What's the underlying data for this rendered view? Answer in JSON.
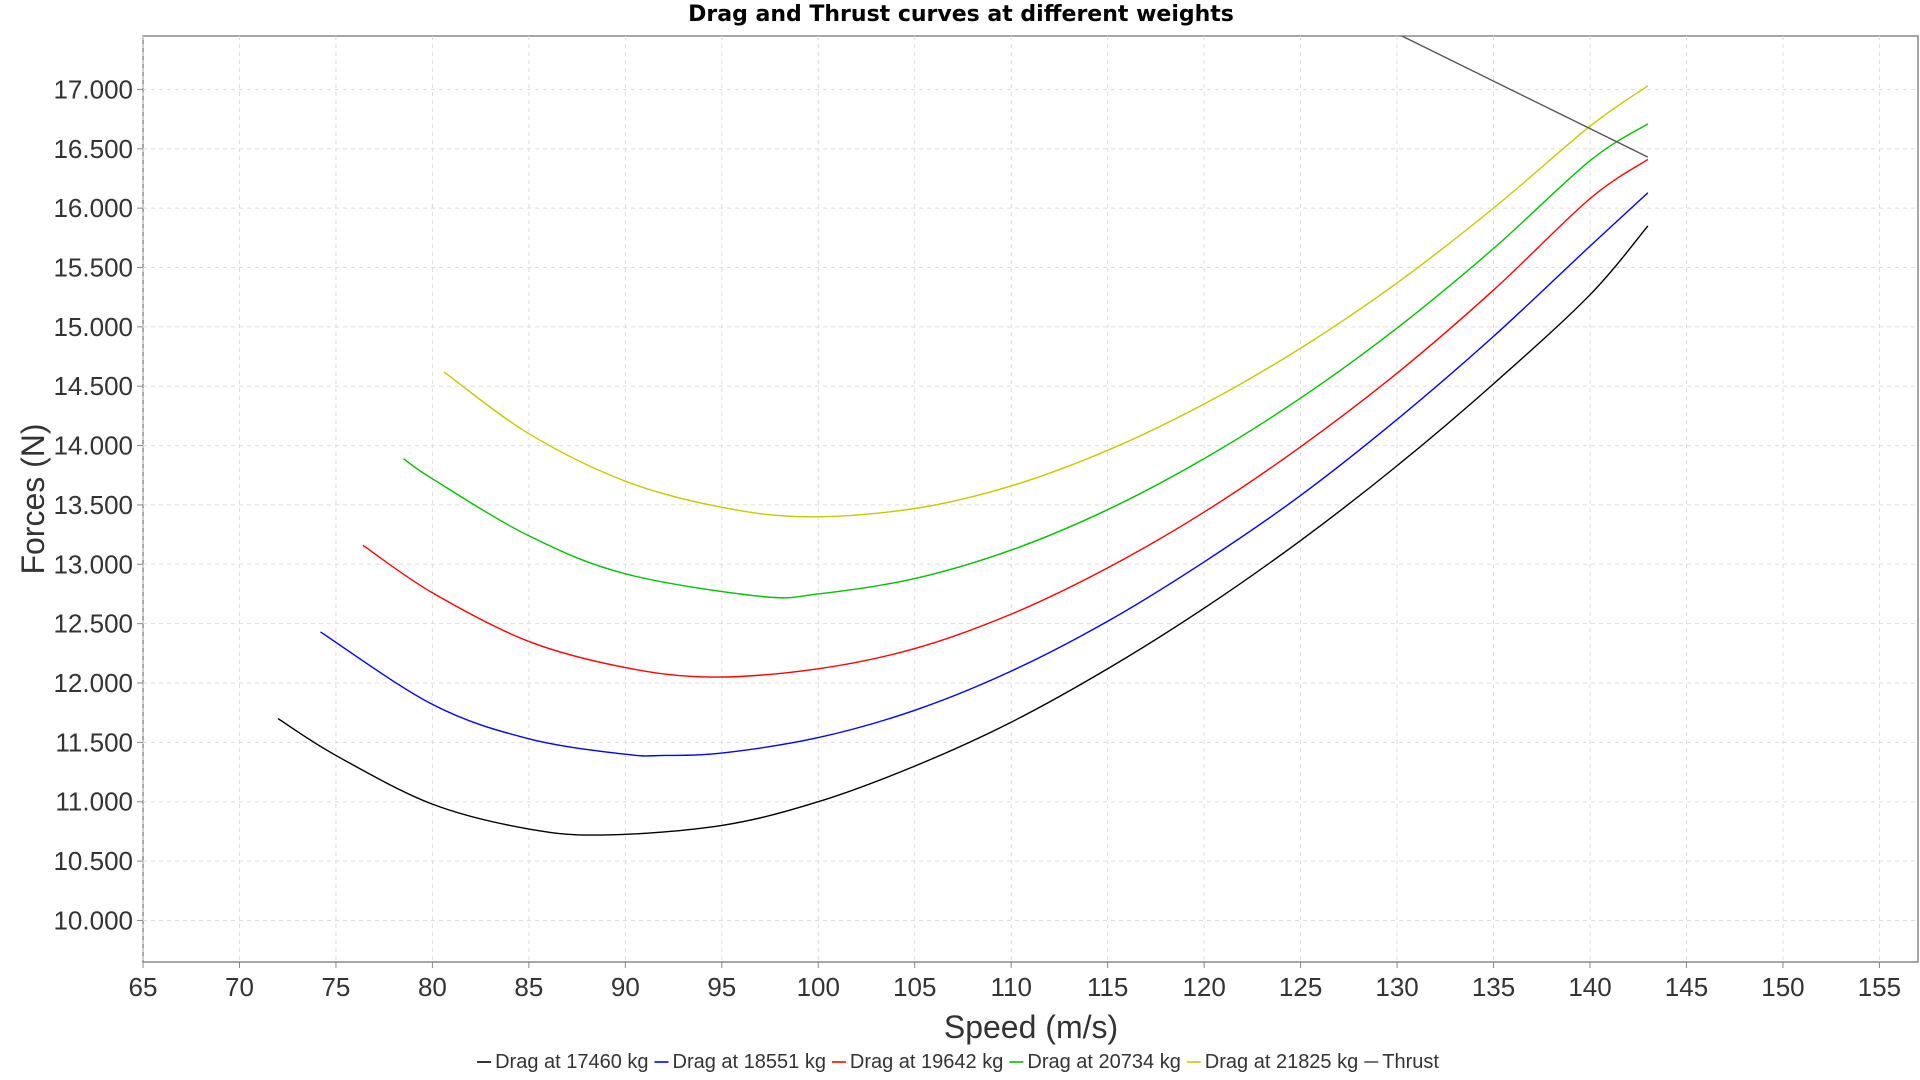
{
  "chart_data": {
    "type": "line",
    "title": "Drag and Thrust curves at different weights",
    "xlabel": "Speed (m/s)",
    "ylabel": "Forces (N)",
    "xlim": [
      65,
      157
    ],
    "ylim": [
      9650,
      17450
    ],
    "x_ticks": [
      65,
      70,
      75,
      80,
      85,
      90,
      95,
      100,
      105,
      110,
      115,
      120,
      125,
      130,
      135,
      140,
      145,
      150,
      155
    ],
    "x_tick_labels": [
      "65",
      "70",
      "75",
      "80",
      "85",
      "90",
      "95",
      "100",
      "105",
      "110",
      "115",
      "120",
      "125",
      "130",
      "135",
      "140",
      "145",
      "150",
      "155"
    ],
    "y_ticks": [
      10000,
      10500,
      11000,
      11500,
      12000,
      12500,
      13000,
      13500,
      14000,
      14500,
      15000,
      15500,
      16000,
      16500,
      17000
    ],
    "y_tick_labels": [
      "10.000",
      "10.500",
      "11.000",
      "11.500",
      "12.000",
      "12.500",
      "13.000",
      "13.500",
      "14.000",
      "14.500",
      "15.000",
      "15.500",
      "16.000",
      "16.500",
      "17.000"
    ],
    "grid": true,
    "legend_position": "bottom",
    "series": [
      {
        "name": "Drag at 17460 kg",
        "color": "#000000",
        "x": [
          72,
          75,
          80,
          85,
          89,
          95,
          100,
          105,
          110,
          115,
          120,
          125,
          130,
          135,
          140,
          143
        ],
        "y": [
          11700,
          11390,
          10980,
          10770,
          10720,
          10800,
          11000,
          11300,
          11670,
          12120,
          12630,
          13200,
          13830,
          14520,
          15270,
          15850
        ]
      },
      {
        "name": "Drag at 18551 kg",
        "color": "#0000ff",
        "x": [
          74.2,
          80,
          85,
          90,
          92,
          95,
          100,
          105,
          110,
          115,
          120,
          125,
          130,
          135,
          140,
          143
        ],
        "y": [
          12430,
          11820,
          11530,
          11400,
          11390,
          11410,
          11540,
          11770,
          12100,
          12520,
          13020,
          13580,
          14220,
          14920,
          15680,
          16130
        ]
      },
      {
        "name": "Drag at 19642 kg",
        "color": "#ff0000",
        "x": [
          76.4,
          80,
          85,
          90,
          94.5,
          100,
          105,
          110,
          115,
          120,
          125,
          130,
          135,
          140,
          143
        ],
        "y": [
          13160,
          12760,
          12350,
          12130,
          12050,
          12120,
          12290,
          12580,
          12970,
          13440,
          13990,
          14610,
          15310,
          16080,
          16410
        ]
      },
      {
        "name": "Drag at 20734 kg",
        "color": "#00c000",
        "x": [
          78.5,
          80,
          85,
          90,
          97,
          100,
          105,
          110,
          115,
          120,
          125,
          130,
          135,
          140,
          143
        ],
        "y": [
          13890,
          13720,
          13240,
          12920,
          12730,
          12750,
          12880,
          13120,
          13460,
          13890,
          14400,
          14990,
          15660,
          16400,
          16710
        ]
      },
      {
        "name": "Drag at 21825 kg",
        "color": "#c8c800",
        "x": [
          80.6,
          85,
          90,
          95,
          99.5,
          105,
          110,
          115,
          120,
          125,
          130,
          135,
          140,
          143
        ],
        "y": [
          14620,
          14100,
          13700,
          13480,
          13400,
          13470,
          13660,
          13960,
          14350,
          14820,
          15370,
          16000,
          16690,
          17030
        ]
      },
      {
        "name": "Thrust",
        "color": "#555555",
        "x": [
          130,
          143
        ],
        "y": [
          17470,
          16430
        ]
      }
    ]
  }
}
